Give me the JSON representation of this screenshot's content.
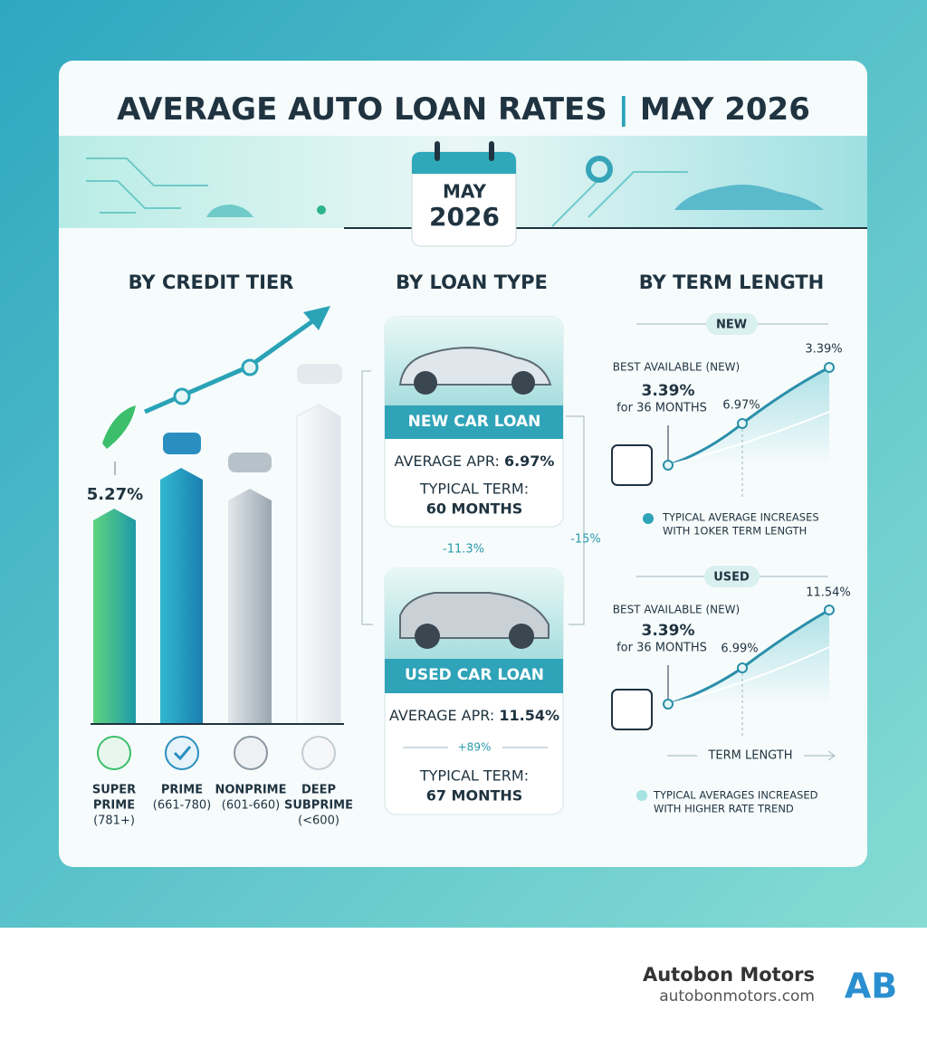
{
  "header": {
    "title_left": "AVERAGE AUTO LOAN RATES",
    "title_separator": "|",
    "title_right": "MAY 2026",
    "calendar_month": "MAY",
    "calendar_year": "2026"
  },
  "credit_tier": {
    "heading": "BY CREDIT TIER",
    "value_label": "5.27%",
    "tiers": [
      {
        "name": [
          "SUPER",
          "PRIME"
        ],
        "range": "(781+)"
      },
      {
        "name": [
          "PRIME"
        ],
        "range": "(661-780)"
      },
      {
        "name": [
          "NONPRIME"
        ],
        "range": "(601-660)"
      },
      {
        "name": [
          "DEEP",
          "SUBPRIME"
        ],
        "range": "(<600)"
      }
    ]
  },
  "loan_type": {
    "heading": "BY LOAN TYPE",
    "new": {
      "title": "NEW CAR LOAN",
      "apr_label": "AVERAGE APR:",
      "apr": "6.97%",
      "term_label": "TYPICAL TERM:",
      "term": "60 MONTHS"
    },
    "between_change": "-11.3%",
    "side_change": "-15%",
    "used": {
      "title": "USED CAR LOAN",
      "apr_label": "AVERAGE APR:",
      "apr": "11.54%",
      "change": "+89%",
      "term_label": "TYPICAL TERM:",
      "term": "67 MONTHS"
    }
  },
  "term_length": {
    "heading": "BY TERM LENGTH",
    "new": {
      "pill": "NEW",
      "best_label": "BEST AVAILABLE (NEW)",
      "best_rate": "3.39%",
      "best_term": "for 36 MONTHS",
      "mid_label": "6.97%",
      "end_label": "3.39%",
      "note": [
        "TYPICAL AVERAGE INCREASES",
        "WITH 1OKER TERM LENGTH"
      ]
    },
    "used": {
      "pill": "USED",
      "best_label": "BEST AVAILABLE (NEW)",
      "best_rate": "3.39%",
      "best_term": "for 36 MONTHS",
      "mid_label": "6.99%",
      "end_label": "11.54%",
      "axis_label": "TERM LENGTH",
      "note": [
        "TYPICAL AVERAGES INCREASED",
        "WITH HIGHER RATE TREND"
      ]
    }
  },
  "footer": {
    "brand": "Autobon Motors",
    "url": "autobonmotors.com",
    "logo": "AB"
  }
}
